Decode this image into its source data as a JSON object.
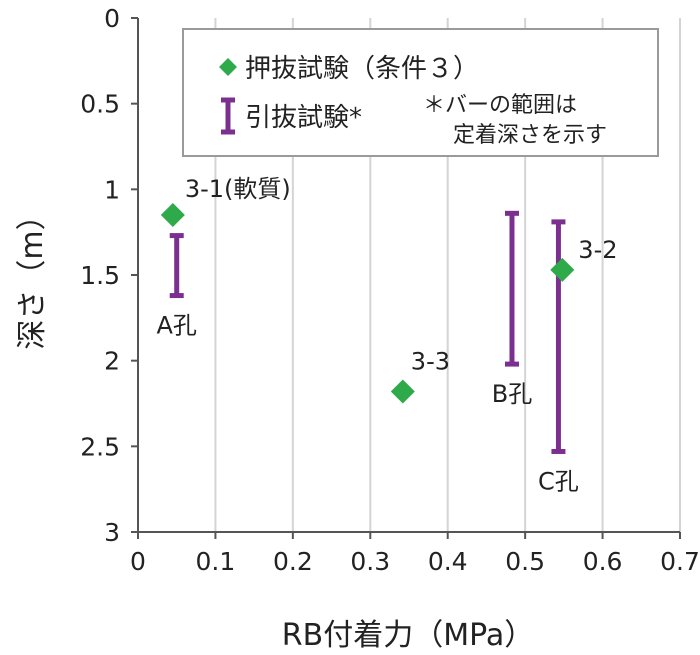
{
  "chart_data": {
    "type": "scatter",
    "xlabel": "RB付着力（MPa）",
    "ylabel": "深さ（m）",
    "xlim": [
      0,
      0.7
    ],
    "ylim": [
      0,
      3
    ],
    "y_inverted": true,
    "x_ticks": [
      "0",
      "0.1",
      "0.2",
      "0.3",
      "0.4",
      "0.5",
      "0.6",
      "0.7"
    ],
    "y_ticks": [
      "0",
      "0.5",
      "1",
      "1.5",
      "2",
      "2.5",
      "3"
    ],
    "grid": "vertical",
    "legend_position": "top-right",
    "series": [
      {
        "name": "押抜試験（条件３）",
        "marker": "diamond",
        "color": "#2EAA4A",
        "points": [
          {
            "x": 0.045,
            "y": 1.15,
            "label": "3-1(軟質)"
          },
          {
            "x": 0.548,
            "y": 1.47,
            "label": "3-2"
          },
          {
            "x": 0.342,
            "y": 2.18,
            "label": "3-3"
          }
        ]
      },
      {
        "name": "引抜試験*",
        "marker": "range-bar",
        "color": "#7B2F8E",
        "bars": [
          {
            "x": 0.05,
            "y_top": 1.27,
            "y_bottom": 1.62,
            "label": "A孔"
          },
          {
            "x": 0.483,
            "y_top": 1.14,
            "y_bottom": 2.02,
            "label": "B孔"
          },
          {
            "x": 0.543,
            "y_top": 1.19,
            "y_bottom": 2.53,
            "label": "C孔"
          }
        ]
      }
    ],
    "legend_note": [
      "＊バーの範囲は",
      "定着深さを示す"
    ]
  }
}
